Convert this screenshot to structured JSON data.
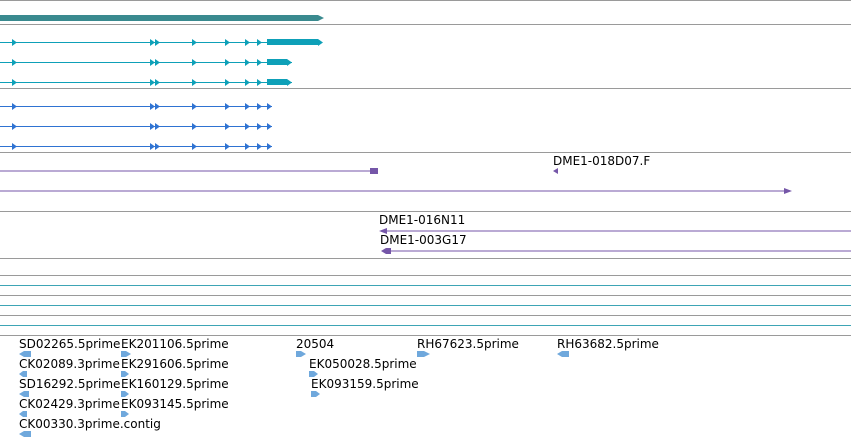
{
  "tracks": {
    "gene_span": {
      "color": "#3a8a8f"
    },
    "cyan_transcripts": {
      "color": "#0ea0b8",
      "count": 3
    },
    "blue_transcripts": {
      "color": "#2f73d2",
      "count": 3
    },
    "clones": {
      "color": "#7556a8",
      "labels": {
        "clone_1": "DME1-018D07.F",
        "clone_2": "DME1-016N11",
        "clone_3": "DME1-003G17"
      }
    },
    "empty_rows": {
      "color": "#3ea5b5",
      "count": 3
    },
    "ests": {
      "color": "#6fa8dc",
      "labels": {
        "est_1": "SD02265.5prime",
        "est_2": "EK201106.5prime",
        "est_3": "20504",
        "est_4": "RH67623.5prime",
        "est_5": "RH63682.5prime",
        "est_6": "CK02089.3prime",
        "est_7": "EK291606.5prime",
        "est_8": "EK050028.5prime",
        "est_9": "SD16292.5prime",
        "est_10": "EK160129.5prime",
        "est_11": "EK093159.5prime",
        "est_12": "CK02429.3prime",
        "est_13": "EK093145.5prime",
        "est_14": "CK00330.3prime.contig"
      }
    }
  }
}
